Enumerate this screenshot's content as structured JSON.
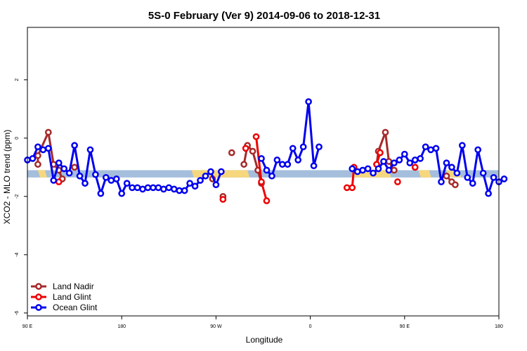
{
  "chart_data": {
    "type": "line",
    "title": "5S-0 February (Ver 9)   2014-09-06 to 2018-12-31",
    "xlabel": "Longitude",
    "ylabel": "XCO2 - MLO trend (ppm)",
    "xlim": [
      -90,
      180
    ],
    "ylim": [
      -6.1,
      3.8
    ],
    "x_ticks": [
      {
        "value": -90,
        "label": "90 E"
      },
      {
        "value": -36,
        "label": "180"
      },
      {
        "value": 18,
        "label": "90 W"
      },
      {
        "value": 72,
        "label": "0"
      },
      {
        "value": 126,
        "label": "90 E"
      },
      {
        "value": 180,
        "label": "180"
      }
    ],
    "y_ticks": [
      -6,
      -4,
      -2,
      0,
      2
    ],
    "legend_position": "bottom-left",
    "band": {
      "y_low": -1.35,
      "y_high": -1.1,
      "blue": "#a4bedc",
      "gold": "#f6d77e"
    },
    "band_gold_segments": [
      [
        -84,
        -80
      ],
      [
        4,
        36
      ],
      [
        96,
        117
      ],
      [
        134,
        140
      ],
      [
        150,
        157
      ]
    ],
    "series": [
      {
        "name": "Land Nadir",
        "color": "#a52a2a",
        "segments": [
          [
            [
              -84,
              -0.9
            ],
            [
              -84,
              -0.6
            ],
            [
              -78,
              0.2
            ],
            [
              -75,
              -0.9
            ],
            [
              -72,
              -1.1
            ],
            [
              -70,
              -1.4
            ]
          ],
          [
            [
              -63,
              -1.0
            ]
          ],
          [
            [
              16,
              -1.4
            ]
          ],
          [
            [
              22,
              -2.0
            ]
          ],
          [
            [
              27,
              -0.5
            ]
          ],
          [
            [
              34,
              -0.9
            ],
            [
              36,
              -0.25
            ],
            [
              39,
              -0.45
            ],
            [
              42,
              -1.1
            ],
            [
              44,
              -1.55
            ]
          ],
          [
            [
              110,
              -0.9
            ],
            [
              111,
              -0.45
            ],
            [
              115,
              0.2
            ],
            [
              117,
              -0.8
            ],
            [
              120,
              -1.1
            ]
          ],
          [
            [
              132,
              -1.0
            ]
          ],
          [
            [
              150,
              -1.3
            ],
            [
              153,
              -1.5
            ],
            [
              155,
              -1.6
            ]
          ]
        ]
      },
      {
        "name": "Land Glint",
        "color": "#ee0000",
        "segments": [
          [
            [
              -72,
              -1.5
            ]
          ],
          [
            [
              22,
              -2.1
            ]
          ],
          [
            [
              35,
              -0.35
            ]
          ],
          [
            [
              41,
              0.05
            ],
            [
              44,
              -1.5
            ],
            [
              47,
              -2.15
            ]
          ],
          [
            [
              93,
              -1.7
            ],
            [
              96,
              -1.7
            ],
            [
              97,
              -1.0
            ]
          ],
          [
            [
              110,
              -0.9
            ],
            [
              112,
              -0.5
            ]
          ],
          [
            [
              122,
              -1.5
            ]
          ],
          [
            [
              132,
              -1.0
            ]
          ]
        ]
      },
      {
        "name": "Ocean Glint",
        "color": "#0000ee",
        "segments": [
          [
            [
              -90,
              -0.75
            ],
            [
              -87,
              -0.7
            ],
            [
              -84,
              -0.3
            ],
            [
              -81,
              -0.4
            ],
            [
              -78,
              -0.35
            ],
            [
              -75,
              -1.45
            ],
            [
              -72,
              -0.85
            ],
            [
              -69,
              -1.05
            ],
            [
              -66,
              -1.2
            ],
            [
              -63,
              -0.25
            ],
            [
              -60,
              -1.3
            ],
            [
              -57,
              -1.55
            ],
            [
              -54,
              -0.4
            ],
            [
              -51,
              -1.25
            ],
            [
              -48,
              -1.9
            ],
            [
              -45,
              -1.35
            ],
            [
              -42,
              -1.45
            ],
            [
              -39,
              -1.4
            ],
            [
              -36,
              -1.9
            ],
            [
              -33,
              -1.55
            ],
            [
              -30,
              -1.7
            ],
            [
              -27,
              -1.7
            ],
            [
              -24,
              -1.75
            ],
            [
              -21,
              -1.7
            ],
            [
              -18,
              -1.7
            ],
            [
              -15,
              -1.7
            ],
            [
              -12,
              -1.75
            ],
            [
              -9,
              -1.7
            ],
            [
              -6,
              -1.75
            ],
            [
              -3,
              -1.8
            ],
            [
              0,
              -1.8
            ],
            [
              3,
              -1.55
            ],
            [
              6,
              -1.65
            ],
            [
              9,
              -1.45
            ],
            [
              12,
              -1.3
            ],
            [
              15,
              -1.15
            ],
            [
              18,
              -1.6
            ],
            [
              21,
              -1.15
            ]
          ],
          [
            [
              44,
              -0.7
            ],
            [
              47,
              -1.1
            ],
            [
              50,
              -1.3
            ],
            [
              53,
              -0.75
            ],
            [
              56,
              -0.9
            ],
            [
              59,
              -0.9
            ],
            [
              62,
              -0.35
            ],
            [
              65,
              -0.75
            ],
            [
              68,
              -0.3
            ],
            [
              71,
              1.25
            ],
            [
              74,
              -0.95
            ],
            [
              77,
              -0.3
            ]
          ],
          [
            [
              96,
              -1.05
            ],
            [
              99,
              -1.15
            ],
            [
              102,
              -1.1
            ],
            [
              105,
              -1.05
            ],
            [
              108,
              -1.2
            ],
            [
              111,
              -1.05
            ],
            [
              114,
              -0.8
            ],
            [
              117,
              -1.1
            ],
            [
              120,
              -0.85
            ],
            [
              123,
              -0.75
            ],
            [
              126,
              -0.55
            ],
            [
              129,
              -0.85
            ],
            [
              132,
              -0.75
            ],
            [
              135,
              -0.7
            ],
            [
              138,
              -0.3
            ],
            [
              141,
              -0.4
            ],
            [
              144,
              -0.35
            ],
            [
              147,
              -1.5
            ],
            [
              150,
              -0.85
            ],
            [
              153,
              -1.0
            ],
            [
              156,
              -1.2
            ],
            [
              159,
              -0.25
            ],
            [
              162,
              -1.35
            ],
            [
              165,
              -1.55
            ],
            [
              168,
              -0.4
            ],
            [
              171,
              -1.2
            ],
            [
              174,
              -1.9
            ],
            [
              177,
              -1.35
            ],
            [
              180,
              -1.5
            ],
            [
              183,
              -1.4
            ]
          ]
        ]
      }
    ]
  }
}
